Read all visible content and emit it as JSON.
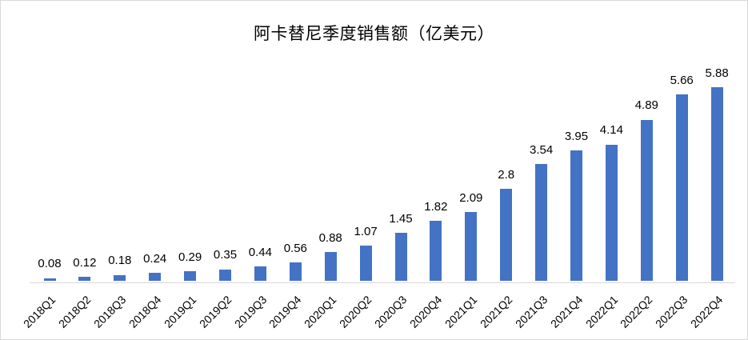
{
  "chart_data": {
    "type": "bar",
    "title": "阿卡替尼季度销售额（亿美元）",
    "categories": [
      "2018Q1",
      "2018Q2",
      "2018Q3",
      "2018Q4",
      "2019Q1",
      "2019Q2",
      "2019Q3",
      "2019Q4",
      "2020Q1",
      "2020Q2",
      "2020Q3",
      "2020Q4",
      "2021Q1",
      "2021Q2",
      "2021Q3",
      "2021Q4",
      "2022Q1",
      "2022Q2",
      "2022Q3",
      "2022Q4"
    ],
    "values": [
      0.08,
      0.12,
      0.18,
      0.24,
      0.29,
      0.35,
      0.44,
      0.56,
      0.88,
      1.07,
      1.45,
      1.82,
      2.09,
      2.8,
      3.54,
      3.95,
      4.14,
      4.89,
      5.66,
      5.88
    ],
    "data_labels": [
      "0.08",
      "0.12",
      "0.18",
      "0.24",
      "0.29",
      "0.35",
      "0.44",
      "0.56",
      "0.88",
      "1.07",
      "1.45",
      "1.82",
      "2.09",
      "2.8",
      "3.54",
      "3.95",
      "4.14",
      "4.89",
      "5.66",
      "5.88"
    ],
    "xlabel": "",
    "ylabel": "",
    "ylim": [
      0,
      6
    ],
    "grid": false,
    "legend": false,
    "y_axis_visible": false,
    "x_label_rotation_deg": 45,
    "colors": {
      "bar": "#4472C4",
      "axis_line": "#D9D9D9",
      "chart_border": "#D9D9D9",
      "text": "#000000",
      "background": "#ffffff"
    }
  }
}
